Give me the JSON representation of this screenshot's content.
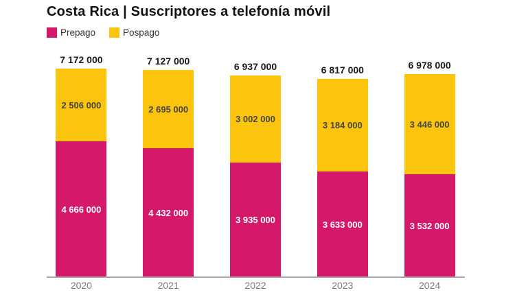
{
  "title": "Costa Rica | Suscriptores a telefonía móvil",
  "legend": [
    {
      "label": "Prepago",
      "color": "#d6186b"
    },
    {
      "label": "Pospago",
      "color": "#fcc40d"
    }
  ],
  "colors": {
    "prepago": "#d6186b",
    "pospago": "#fcc40d",
    "prepago_label": "#ffffff",
    "pospago_label": "#474747",
    "total_label": "#1a1a1a",
    "axis_line": "#a8a8a8",
    "year_label": "#7a7a7a",
    "background": "#ffffff"
  },
  "chart_data": {
    "type": "bar",
    "stacked": true,
    "title": "Costa Rica | Suscriptores a telefonía móvil",
    "categories": [
      "2020",
      "2021",
      "2022",
      "2023",
      "2024"
    ],
    "series": [
      {
        "name": "Prepago",
        "color": "#d6186b",
        "values": [
          4666000,
          4432000,
          3935000,
          3633000,
          3532000
        ],
        "labels": [
          "4 666 000",
          "4 432 000",
          "3 935 000",
          "3 633 000",
          "3 532 000"
        ]
      },
      {
        "name": "Pospago",
        "color": "#fcc40d",
        "values": [
          2506000,
          2695000,
          3002000,
          3184000,
          3446000
        ],
        "labels": [
          "2 506 000",
          "2 695 000",
          "3 002 000",
          "3 184 000",
          "3 446 000"
        ]
      }
    ],
    "totals": [
      7172000,
      7127000,
      6937000,
      6817000,
      6978000
    ],
    "total_labels": [
      "7 172 000",
      "7 127 000",
      "6 937 000",
      "6 817 000",
      "6 978 000"
    ],
    "ylim": [
      0,
      7172000
    ],
    "grid": false,
    "legend_position": "top-left",
    "value_labels": "inside",
    "xlabel": "",
    "ylabel": ""
  }
}
